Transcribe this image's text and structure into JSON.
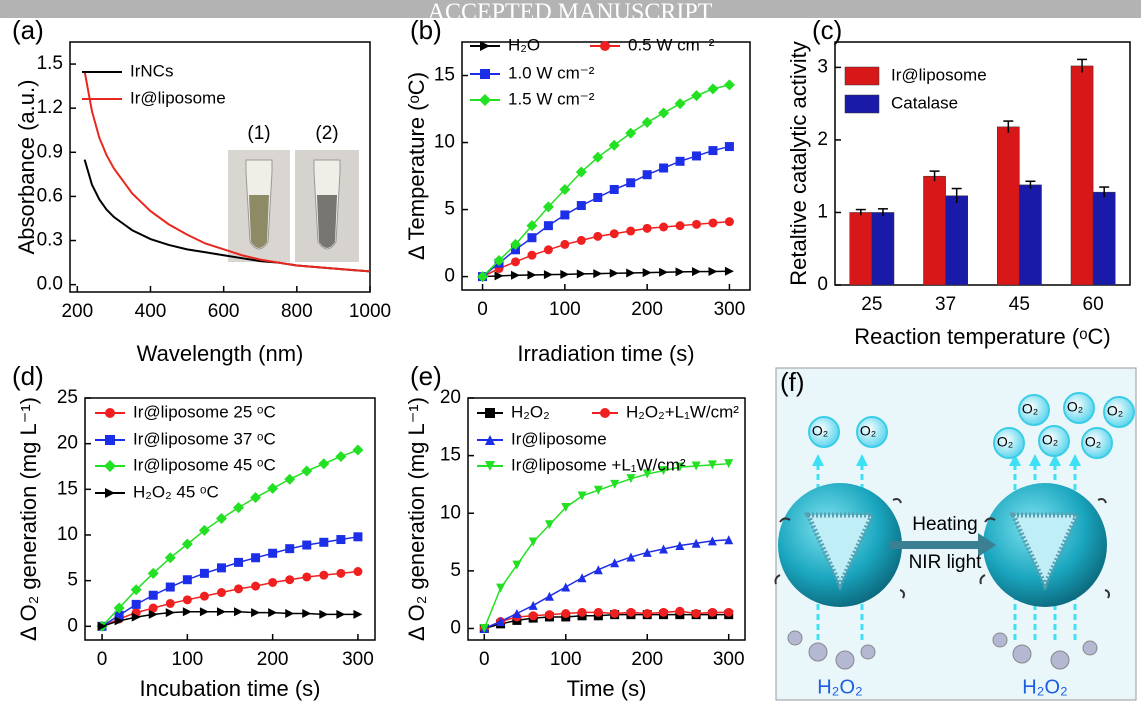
{
  "watermark": "ACCEPTED MANUSCRIPT",
  "chart_data": [
    {
      "type": "line",
      "label": "(a)",
      "x_label": "Wavelength (nm)",
      "y_label": "Absorbance (a.u.)",
      "x": [
        220,
        240,
        260,
        280,
        300,
        350,
        400,
        450,
        500,
        550,
        600,
        650,
        700,
        750,
        800,
        850,
        900,
        950,
        1000
      ],
      "series": [
        {
          "name": "IrNCs",
          "color": "#000000",
          "values": [
            0.85,
            0.68,
            0.58,
            0.51,
            0.46,
            0.37,
            0.31,
            0.27,
            0.24,
            0.22,
            0.2,
            0.18,
            0.16,
            0.15,
            0.13,
            0.12,
            0.11,
            0.1,
            0.09
          ]
        },
        {
          "name": "Ir@liposome",
          "color": "#e8281e",
          "values": [
            1.45,
            1.18,
            1.0,
            0.88,
            0.79,
            0.62,
            0.5,
            0.41,
            0.34,
            0.28,
            0.24,
            0.2,
            0.17,
            0.15,
            0.13,
            0.12,
            0.11,
            0.1,
            0.09
          ]
        }
      ],
      "xlim": [
        180,
        1000
      ],
      "xticks": [
        200,
        400,
        600,
        800,
        1000
      ],
      "ylim": [
        -0.05,
        1.65
      ],
      "yticks": [
        {
          "value": 0,
          "label": "0.0"
        },
        0.3,
        0.6,
        0.9,
        1.2,
        1.5
      ],
      "annotations": [
        "(1)",
        "(2)"
      ]
    },
    {
      "type": "line",
      "label": "(b)",
      "x_label": "Irradiation time (s)",
      "y_label": "Δ Temperature (ᵒC)",
      "x": [
        0,
        20,
        40,
        60,
        80,
        100,
        120,
        140,
        160,
        180,
        200,
        220,
        240,
        260,
        280,
        300
      ],
      "series": [
        {
          "name": "H₂O",
          "color": "#000000",
          "marker": "triangle-right",
          "values": [
            0,
            0.05,
            0.1,
            0.12,
            0.15,
            0.17,
            0.2,
            0.22,
            0.25,
            0.27,
            0.3,
            0.32,
            0.35,
            0.37,
            0.38,
            0.4
          ]
        },
        {
          "name": "0.5 W cm⁻²",
          "color": "#f02020",
          "marker": "circle",
          "values": [
            0,
            0.6,
            1.1,
            1.6,
            2.0,
            2.4,
            2.7,
            3.0,
            3.2,
            3.4,
            3.6,
            3.7,
            3.8,
            3.9,
            4.0,
            4.1
          ]
        },
        {
          "name": "1.0 W cm⁻²",
          "color": "#1d2ee8",
          "marker": "square",
          "values": [
            0,
            1.0,
            2.0,
            2.9,
            3.8,
            4.6,
            5.3,
            5.9,
            6.5,
            7.0,
            7.6,
            8.1,
            8.6,
            9.0,
            9.4,
            9.7
          ]
        },
        {
          "name": "1.5 W cm⁻²",
          "color": "#22e022",
          "marker": "diamond",
          "values": [
            0,
            1.2,
            2.4,
            3.8,
            5.2,
            6.5,
            7.8,
            8.9,
            9.8,
            10.7,
            11.5,
            12.2,
            12.9,
            13.5,
            14.0,
            14.3
          ]
        }
      ],
      "xlim": [
        -25,
        325
      ],
      "xticks": [
        0,
        100,
        200,
        300
      ],
      "ylim": [
        -1,
        17.5
      ],
      "yticks": [
        0,
        5,
        10,
        15
      ]
    },
    {
      "type": "bar",
      "label": "(c)",
      "x_label": "Reaction temperature (ᵒC)",
      "y_label": "Retaltive catalytic activity",
      "categories": [
        "25",
        "37",
        "45",
        "60"
      ],
      "series": [
        {
          "name": "Ir@liposome",
          "color": "#d81818",
          "values": [
            1.0,
            1.5,
            2.18,
            3.02
          ],
          "errors": [
            0.04,
            0.07,
            0.08,
            0.09
          ]
        },
        {
          "name": "Catalase",
          "color": "#1a1aa8",
          "values": [
            1.0,
            1.23,
            1.38,
            1.28
          ],
          "errors": [
            0.05,
            0.1,
            0.05,
            0.07
          ]
        }
      ],
      "ylim": [
        0,
        3.35
      ],
      "yticks": [
        0,
        1,
        2,
        3
      ]
    },
    {
      "type": "line",
      "label": "(d)",
      "x_label": "Incubation time (s)",
      "y_label": "Δ O₂ generation (mg L⁻¹)",
      "x": [
        0,
        20,
        40,
        60,
        80,
        100,
        120,
        140,
        160,
        180,
        200,
        220,
        240,
        260,
        280,
        300
      ],
      "series": [
        {
          "name": "Ir@liposome 25 ᵒC",
          "color": "#f02020",
          "marker": "circle",
          "values": [
            0,
            0.8,
            1.5,
            2.0,
            2.5,
            2.9,
            3.3,
            3.7,
            4.1,
            4.4,
            4.8,
            5.1,
            5.4,
            5.6,
            5.8,
            6.0
          ]
        },
        {
          "name": "Ir@liposome 37 ᵒC",
          "color": "#1d2ee8",
          "marker": "square",
          "values": [
            0,
            1.2,
            2.4,
            3.4,
            4.3,
            5.1,
            5.8,
            6.4,
            7.0,
            7.5,
            8.0,
            8.5,
            8.9,
            9.2,
            9.5,
            9.8
          ]
        },
        {
          "name": "Ir@liposome 45 ᵒC",
          "color": "#22e022",
          "marker": "diamond",
          "values": [
            0,
            2.0,
            4.0,
            5.8,
            7.5,
            9.0,
            10.5,
            11.8,
            13.0,
            14.1,
            15.1,
            16.1,
            17.0,
            17.8,
            18.6,
            19.3
          ]
        },
        {
          "name": "H₂O₂ 45 ᵒC",
          "color": "#000000",
          "marker": "triangle-right",
          "values": [
            0,
            0.6,
            1.0,
            1.3,
            1.5,
            1.6,
            1.6,
            1.6,
            1.6,
            1.5,
            1.5,
            1.4,
            1.4,
            1.3,
            1.3,
            1.3
          ]
        }
      ],
      "xlim": [
        -20,
        320
      ],
      "xticks": [
        0,
        100,
        200,
        300
      ],
      "ylim": [
        -1.5,
        25
      ],
      "yticks": [
        0,
        5,
        10,
        15,
        20,
        25
      ]
    },
    {
      "type": "line",
      "label": "(e)",
      "x_label": "Time (s)",
      "y_label": "Δ O₂ generation (mg L⁻¹)",
      "x": [
        0,
        20,
        40,
        60,
        80,
        100,
        120,
        140,
        160,
        180,
        200,
        220,
        240,
        260,
        280,
        300
      ],
      "series": [
        {
          "name": "H₂O₂",
          "color": "#000000",
          "marker": "square",
          "values": [
            0,
            0.4,
            0.7,
            0.9,
            1.0,
            1.0,
            1.1,
            1.1,
            1.2,
            1.2,
            1.2,
            1.2,
            1.2,
            1.2,
            1.2,
            1.2
          ]
        },
        {
          "name": "H₂O₂+L₁W/cm²",
          "color": "#f02020",
          "marker": "circle",
          "values": [
            0,
            0.6,
            1.0,
            1.1,
            1.2,
            1.3,
            1.4,
            1.4,
            1.3,
            1.4,
            1.3,
            1.4,
            1.5,
            1.3,
            1.4,
            1.4
          ]
        },
        {
          "name": "Ir@liposome",
          "color": "#1d2ee8",
          "marker": "triangle-up",
          "values": [
            0,
            0.6,
            1.3,
            2.0,
            2.8,
            3.6,
            4.4,
            5.1,
            5.7,
            6.2,
            6.6,
            6.9,
            7.2,
            7.4,
            7.6,
            7.7
          ]
        },
        {
          "name": "Ir@liposome +L₁W/cm²",
          "color": "#22e022",
          "marker": "triangle-down",
          "values": [
            0,
            3.5,
            5.5,
            7.5,
            9.0,
            10.5,
            11.5,
            12.0,
            12.5,
            13.0,
            13.4,
            13.7,
            14.0,
            14.1,
            14.2,
            14.3
          ]
        }
      ],
      "xlim": [
        -20,
        320
      ],
      "xticks": [
        0,
        100,
        200,
        300
      ],
      "ylim": [
        -1,
        20
      ],
      "yticks": [
        0,
        5,
        10,
        15,
        20
      ]
    }
  ],
  "diagram": {
    "label": "(f)",
    "arrow_top": "Heating",
    "arrow_bottom": "NIR light",
    "h2o2": "H₂O₂",
    "o2": "O₂"
  }
}
